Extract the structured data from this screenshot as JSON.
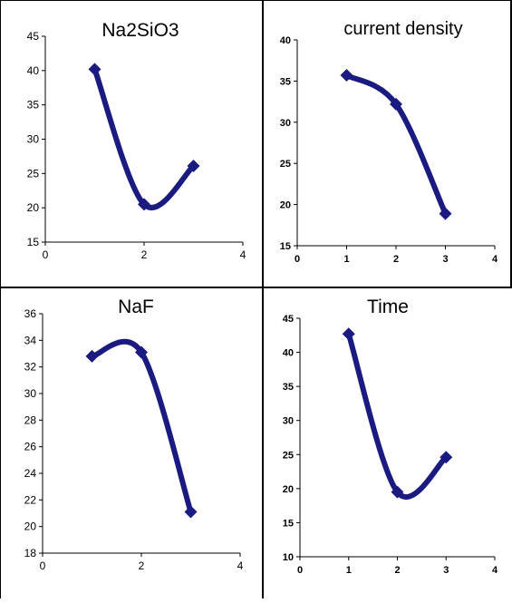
{
  "chart_data": [
    {
      "type": "line",
      "title": "Na2SiO3",
      "xlabel": "",
      "ylabel": "",
      "x": [
        1,
        2,
        3
      ],
      "series": [
        {
          "values": [
            40.2,
            20.5,
            26.1
          ]
        }
      ],
      "xlim": [
        0,
        4
      ],
      "ylim": [
        15,
        45
      ],
      "xticks": [
        "0",
        "2",
        "4"
      ],
      "yticks": [
        "15",
        "20",
        "25",
        "30",
        "35",
        "40",
        "45"
      ],
      "grid": false,
      "smooth": true,
      "color": "#1a1a80"
    },
    {
      "type": "line",
      "title": "current density",
      "xlabel": "",
      "ylabel": "",
      "x": [
        1,
        2,
        3
      ],
      "series": [
        {
          "values": [
            35.7,
            32.2,
            18.9
          ]
        }
      ],
      "xlim": [
        0,
        4
      ],
      "ylim": [
        15,
        40
      ],
      "xticks": [
        "0",
        "1",
        "2",
        "3",
        "4"
      ],
      "yticks": [
        "15",
        "20",
        "25",
        "30",
        "35",
        "40"
      ],
      "grid": false,
      "smooth": true,
      "color": "#1a1a80"
    },
    {
      "type": "line",
      "title": "NaF",
      "xlabel": "",
      "ylabel": "",
      "x": [
        1,
        2,
        3
      ],
      "series": [
        {
          "values": [
            32.8,
            33.1,
            21.1
          ]
        }
      ],
      "xlim": [
        0,
        4
      ],
      "ylim": [
        18,
        36
      ],
      "xticks": [
        "0",
        "2",
        "4"
      ],
      "yticks": [
        "18",
        "20",
        "22",
        "24",
        "26",
        "28",
        "30",
        "32",
        "34",
        "36"
      ],
      "grid": false,
      "smooth": true,
      "color": "#1a1a80"
    },
    {
      "type": "line",
      "title": "Time",
      "xlabel": "",
      "ylabel": "",
      "x": [
        1,
        2,
        3
      ],
      "series": [
        {
          "values": [
            42.7,
            19.5,
            24.6
          ]
        }
      ],
      "xlim": [
        0,
        4
      ],
      "ylim": [
        10,
        45
      ],
      "xticks": [
        "0",
        "1",
        "2",
        "3",
        "4"
      ],
      "yticks": [
        "10",
        "15",
        "20",
        "25",
        "30",
        "35",
        "40",
        "45"
      ],
      "grid": false,
      "smooth": true,
      "color": "#1a1a80"
    }
  ]
}
